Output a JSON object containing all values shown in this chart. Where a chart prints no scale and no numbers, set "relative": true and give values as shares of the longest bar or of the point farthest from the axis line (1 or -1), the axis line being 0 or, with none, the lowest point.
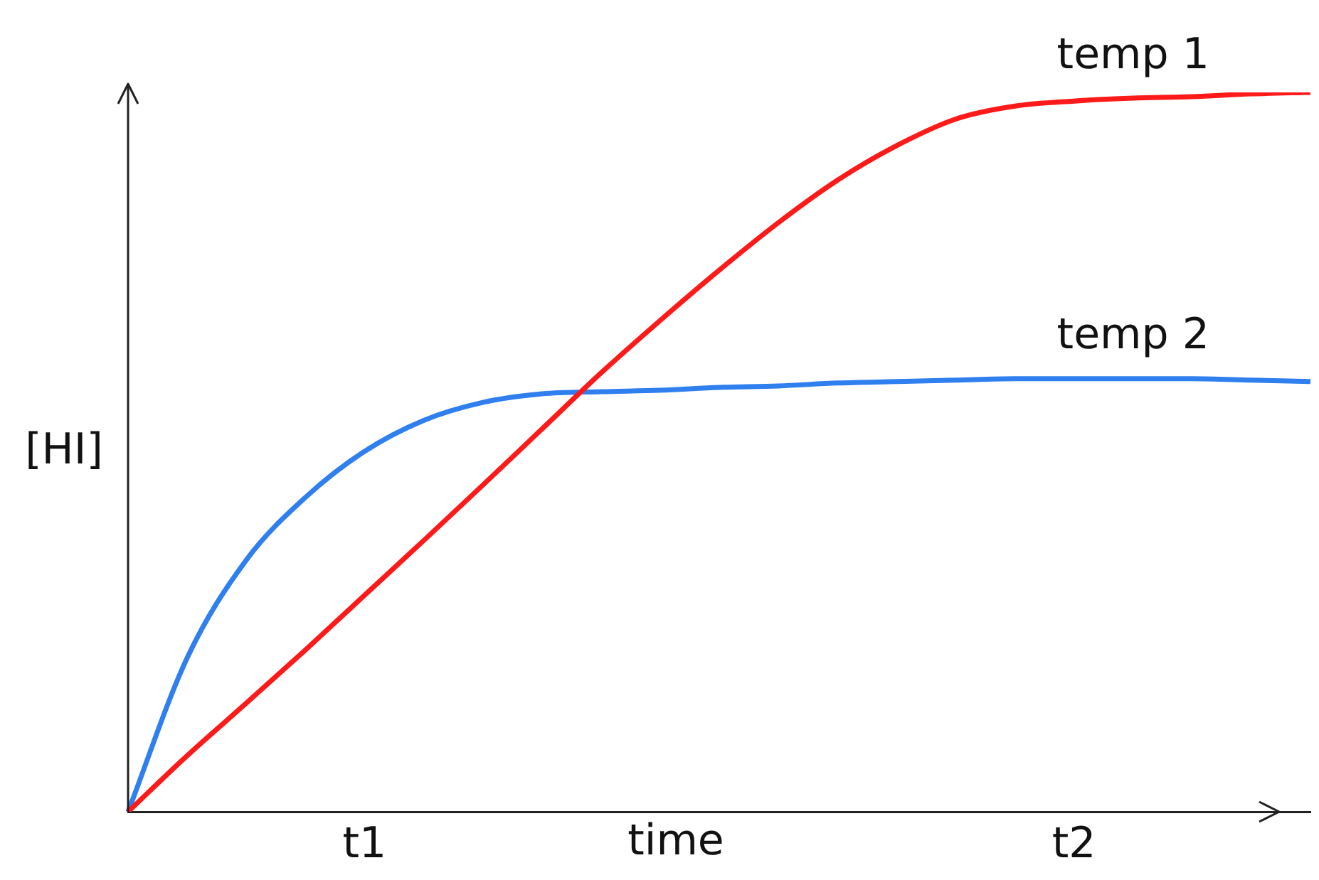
{
  "chart_data": {
    "type": "line",
    "xlabel": "time",
    "ylabel": "[HI]",
    "relative": true,
    "grid": false,
    "legend": false,
    "marker": "none",
    "line_style": "solid",
    "categories": [
      null,
      null,
      null,
      null,
      "t1",
      null,
      null,
      null,
      null,
      null,
      null,
      null,
      null,
      null,
      null,
      null,
      "t2",
      null,
      null,
      null,
      null
    ],
    "series": [
      {
        "name": "temp 1",
        "color": "#ff1a1a",
        "values": [
          0,
          0.078,
          0.151,
          0.225,
          0.301,
          0.377,
          0.454,
          0.532,
          0.61,
          0.683,
          0.753,
          0.819,
          0.878,
          0.926,
          0.963,
          0.981,
          0.988,
          0.992,
          0.994,
          0.998,
          1
        ]
      },
      {
        "name": "temp 2",
        "color": "#2f7fef",
        "values": [
          0,
          0.214,
          0.35,
          0.437,
          0.501,
          0.544,
          0.569,
          0.581,
          0.584,
          0.586,
          0.59,
          0.592,
          0.596,
          0.598,
          0.6,
          0.602,
          0.602,
          0.602,
          0.602,
          0.6,
          0.598
        ]
      }
    ]
  }
}
